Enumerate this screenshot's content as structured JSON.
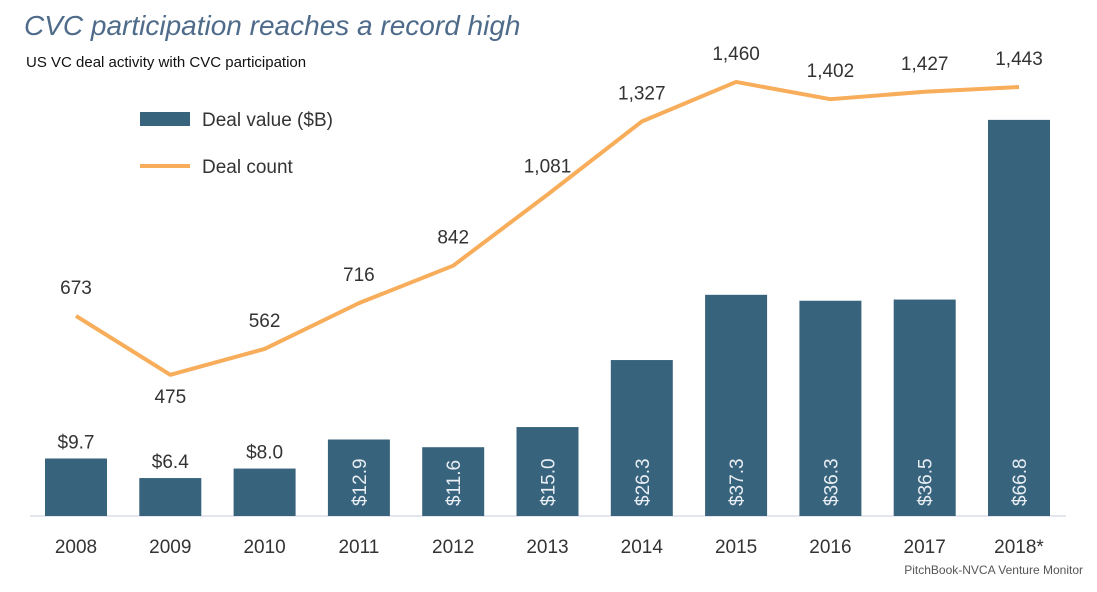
{
  "chart_data": {
    "type": "bar+line",
    "title": "CVC participation reaches a record high",
    "subtitle": "US VC deal activity with CVC participation",
    "source": "PitchBook-NVCA Venture Monitor",
    "categories": [
      "2008",
      "2009",
      "2010",
      "2011",
      "2012",
      "2013",
      "2014",
      "2015",
      "2016",
      "2017",
      "2018*"
    ],
    "series": [
      {
        "name": "Deal value ($B)",
        "type": "bar",
        "color": "#38637d",
        "values": [
          9.7,
          6.4,
          8.0,
          12.9,
          11.6,
          15.0,
          26.3,
          37.3,
          36.3,
          36.5,
          66.8
        ],
        "labels": [
          "$9.7",
          "$6.4",
          "$8.0",
          "$12.9",
          "$11.6",
          "$15.0",
          "$26.3",
          "$37.3",
          "$36.3",
          "$36.5",
          "$66.8"
        ]
      },
      {
        "name": "Deal count",
        "type": "line",
        "color": "#f7ad5a",
        "values": [
          673,
          475,
          562,
          716,
          842,
          1081,
          1327,
          1460,
          1402,
          1427,
          1443
        ],
        "labels": [
          "673",
          "475",
          "562",
          "716",
          "842",
          "1,081",
          "1,327",
          "1,460",
          "1,402",
          "1,427",
          "1,443"
        ]
      }
    ],
    "legend": "top-left",
    "grid": false
  }
}
